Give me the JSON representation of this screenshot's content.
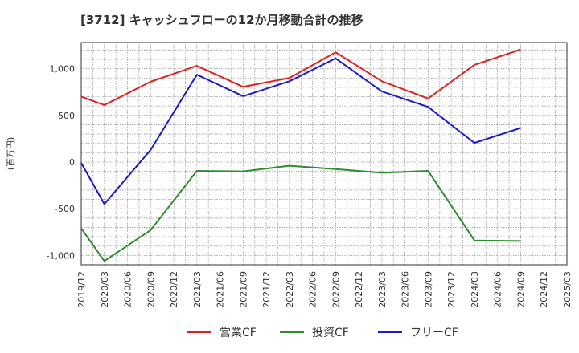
{
  "chart_data": {
    "type": "line",
    "title": "[3712]  キャッシュフローの12か月移動合計の推移",
    "ylabel": "(百万円)",
    "xlabel": "",
    "ylim": [
      -1100,
      1280
    ],
    "yticks": [
      -1000,
      -500,
      0,
      500,
      1000
    ],
    "ytick_labels": [
      "-1,000",
      "-500",
      "0",
      "500",
      "1,000"
    ],
    "xticks": [
      "2019/12",
      "2020/03",
      "2020/06",
      "2020/09",
      "2020/12",
      "2021/03",
      "2021/06",
      "2021/09",
      "2021/12",
      "2022/03",
      "2022/06",
      "2022/09",
      "2022/12",
      "2023/03",
      "2023/06",
      "2023/09",
      "2023/12",
      "2024/03",
      "2024/06",
      "2024/09",
      "2024/12",
      "2025/03"
    ],
    "grid": true,
    "legend_position": "bottom",
    "series": [
      {
        "name": "営業CF",
        "color": "#dd2222",
        "x": [
          "2019/12",
          "2020/03",
          "2020/09",
          "2021/03",
          "2021/09",
          "2022/03",
          "2022/09",
          "2023/03",
          "2023/09",
          "2024/03",
          "2024/09"
        ],
        "values": [
          700,
          610,
          860,
          1030,
          805,
          900,
          1175,
          865,
          680,
          1040,
          1205
        ]
      },
      {
        "name": "投資CF",
        "color": "#2e8b2e",
        "x": [
          "2019/12",
          "2020/03",
          "2020/09",
          "2021/03",
          "2021/09",
          "2022/03",
          "2022/09",
          "2023/03",
          "2023/09",
          "2024/03",
          "2024/09"
        ],
        "values": [
          -710,
          -1060,
          -730,
          -95,
          -100,
          -40,
          -75,
          -115,
          -95,
          -840,
          -845
        ]
      },
      {
        "name": "フリーCF",
        "color": "#1a1acc",
        "x": [
          "2019/12",
          "2020/03",
          "2020/09",
          "2021/03",
          "2021/09",
          "2022/03",
          "2022/09",
          "2023/03",
          "2023/09",
          "2024/03",
          "2024/09"
        ],
        "values": [
          -10,
          -450,
          130,
          935,
          705,
          865,
          1110,
          755,
          590,
          205,
          365
        ]
      }
    ]
  }
}
